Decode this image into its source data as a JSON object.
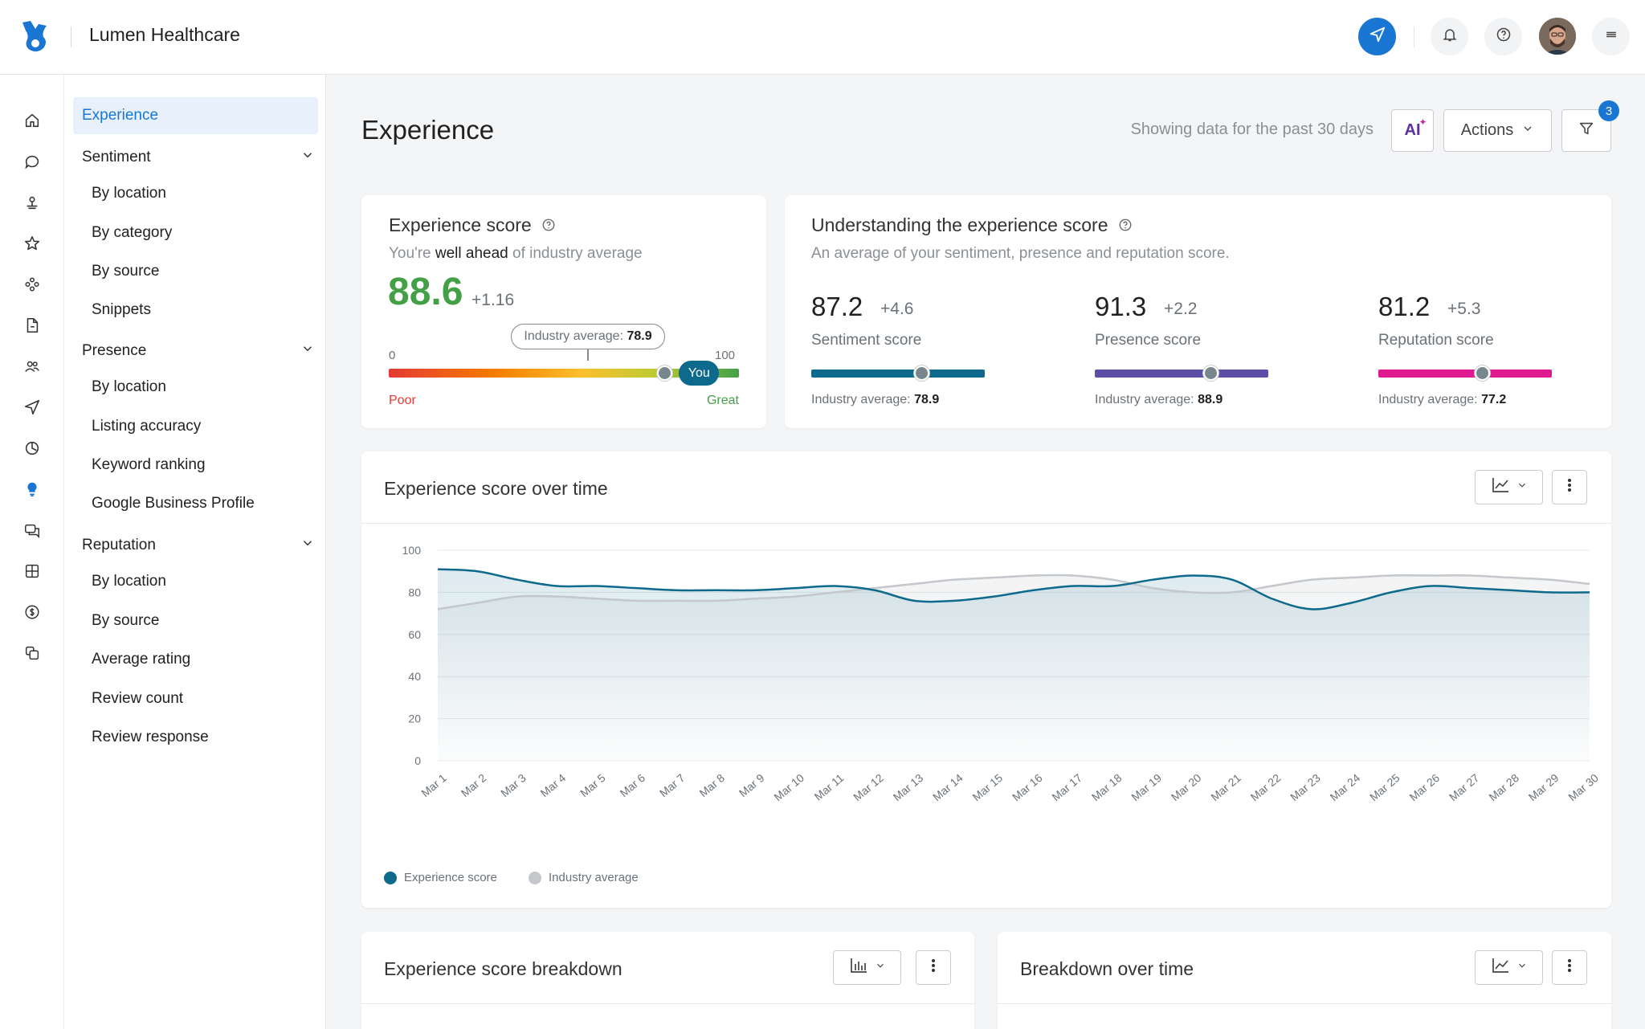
{
  "app": {
    "brand_name": "Lumen Healthcare"
  },
  "colors": {
    "accent": "#1976d2",
    "experience": "#0e6a8c",
    "industry": "#c4c7cb",
    "sentiment": "#0e6a8c",
    "presence": "#5c4fa8",
    "reputation": "#e01a91",
    "good": "#43a047",
    "poor": "#e53935"
  },
  "subnav": {
    "experience": "Experience",
    "sentiment": {
      "label": "Sentiment",
      "items": [
        "By location",
        "By category",
        "By source",
        "Snippets"
      ]
    },
    "presence": {
      "label": "Presence",
      "items": [
        "By location",
        "Listing accuracy",
        "Keyword ranking",
        "Google Business Profile"
      ]
    },
    "reputation": {
      "label": "Reputation",
      "items": [
        "By location",
        "By source",
        "Average rating",
        "Review count",
        "Review response"
      ]
    }
  },
  "page": {
    "title": "Experience",
    "showing": "Showing data for the past 30 days",
    "ai_label": "AI",
    "actions_label": "Actions",
    "filter_count": "3"
  },
  "score_card": {
    "title": "Experience score",
    "sub_pre": "You're ",
    "sub_strong": "well ahead",
    "sub_post": " of industry average",
    "value": "88.6",
    "delta": "+1.16",
    "industry_label": "Industry average:",
    "industry_value": "78.9",
    "min": "0",
    "max": "100",
    "you_label": "You",
    "poor": "Poor",
    "great": "Great",
    "you_fraction": 0.886,
    "industry_fraction": 0.789
  },
  "understanding": {
    "title": "Understanding the experience score",
    "subtitle": "An average of your sentiment, presence and reputation score.",
    "industry_label": "Industry average:",
    "scores": [
      {
        "value": "87.2",
        "delta": "+4.6",
        "label": "Sentiment score",
        "industry": "78.9",
        "industry_fraction": 0.64
      },
      {
        "value": "91.3",
        "delta": "+2.2",
        "label": "Presence score",
        "industry": "88.9",
        "industry_fraction": 0.67
      },
      {
        "value": "81.2",
        "delta": "+5.3",
        "label": "Reputation score",
        "industry": "77.2",
        "industry_fraction": 0.6
      }
    ]
  },
  "over_time": {
    "title": "Experience score over time"
  },
  "breakdown": {
    "title": "Experience score breakdown"
  },
  "breakdown_time": {
    "title": "Breakdown over time"
  },
  "chart_data": {
    "type": "line",
    "title": "Experience score over time",
    "ylim": [
      0,
      100
    ],
    "yticks": [
      0,
      20,
      40,
      60,
      80,
      100
    ],
    "categories": [
      "Mar 1",
      "Mar 2",
      "Mar 3",
      "Mar 4",
      "Mar 5",
      "Mar 6",
      "Mar 7",
      "Mar 8",
      "Mar 9",
      "Mar 10",
      "Mar 11",
      "Mar 12",
      "Mar 13",
      "Mar 14",
      "Mar 15",
      "Mar 16",
      "Mar 17",
      "Mar 18",
      "Mar 19",
      "Mar 20",
      "Mar 21",
      "Mar 22",
      "Mar 23",
      "Mar 24",
      "Mar 25",
      "Mar 26",
      "Mar 27",
      "Mar 28",
      "Mar 29",
      "Mar 30"
    ],
    "series": [
      {
        "name": "Experience score",
        "values": [
          91,
          90,
          86,
          83,
          83,
          82,
          81,
          81,
          81,
          82,
          83,
          81,
          76,
          76,
          78,
          81,
          83,
          83,
          86,
          88,
          86,
          77,
          72,
          75,
          80,
          83,
          82,
          81,
          80,
          80
        ]
      },
      {
        "name": "Industry average",
        "values": [
          72,
          75,
          78,
          78,
          77,
          76,
          76,
          76,
          77,
          78,
          80,
          82,
          84,
          86,
          87,
          88,
          88,
          86,
          82,
          80,
          80,
          83,
          86,
          87,
          88,
          88,
          88,
          87,
          86,
          84
        ]
      }
    ],
    "grid": true,
    "legend": "bottom-left"
  }
}
